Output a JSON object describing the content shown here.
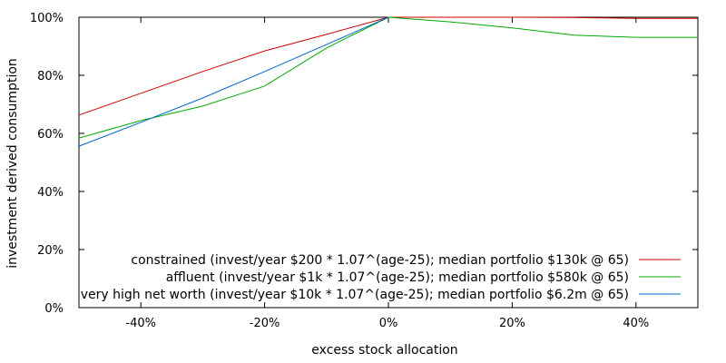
{
  "chart_data": {
    "type": "line",
    "xlabel": "excess stock allocation",
    "ylabel": "investment derived consumption",
    "xlim": [
      -50,
      50
    ],
    "ylim": [
      0,
      100
    ],
    "x_ticks": [
      -40,
      -20,
      0,
      20,
      40
    ],
    "x_tick_labels": [
      "-40%",
      "-20%",
      "0%",
      "20%",
      "40%"
    ],
    "y_ticks": [
      0,
      20,
      40,
      60,
      80,
      100
    ],
    "y_tick_labels": [
      "0%",
      "20%",
      "40%",
      "60%",
      "80%",
      "100%"
    ],
    "legend_position": "bottom-right",
    "grid": false,
    "series": [
      {
        "name": "constrained (invest/year $200 * 1.07^(age-25); median portfolio $130k @ 65)",
        "color": "#cc0000",
        "x": [
          -50,
          -40,
          -30,
          -20,
          -10,
          0,
          10,
          20,
          30,
          40,
          50
        ],
        "y": [
          66.3,
          73.8,
          81.3,
          88.4,
          94.1,
          100,
          100,
          100,
          99.9,
          99.6,
          99.6
        ]
      },
      {
        "name": "affluent (invest/year $1k * 1.07^(age-25); median portfolio $580k @ 65)",
        "color": "#00aa00",
        "x": [
          -50,
          -40,
          -30,
          -20,
          -10,
          0,
          10,
          20,
          30,
          40,
          50
        ],
        "y": [
          58.4,
          64.4,
          69.4,
          76.3,
          89.4,
          100,
          98.4,
          96.3,
          93.8,
          93.1,
          93.1
        ]
      },
      {
        "name": "very high net worth (invest/year $10k * 1.07^(age-25); median portfolio $6.2m @ 65)",
        "color": "#0066cc",
        "x": [
          -50,
          -40,
          -30,
          -20,
          -10,
          0
        ],
        "y": [
          55.6,
          63.8,
          72.2,
          81.3,
          90.6,
          100
        ]
      }
    ]
  }
}
